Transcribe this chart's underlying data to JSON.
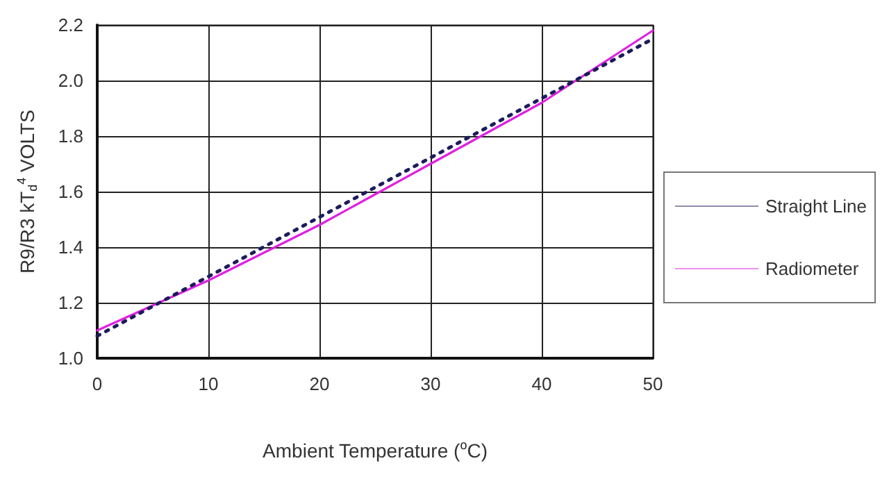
{
  "chart_data": {
    "type": "line",
    "xlabel": "Ambient Temperature ($^{o}$C)",
    "ylabel": "R9/R3 kT$_{d}$$^{4}$ VOLTS",
    "xlim": [
      0,
      50
    ],
    "xticks": [
      0,
      10,
      20,
      30,
      40,
      50
    ],
    "ylim": [
      1.0,
      2.2
    ],
    "yticks": [
      {
        "value": 1.0,
        "label": "1.0"
      },
      {
        "value": 1.2,
        "label": "1.2"
      },
      {
        "value": 1.4,
        "label": "1.4"
      },
      {
        "value": 1.6,
        "label": "1.6"
      },
      {
        "value": 1.8,
        "label": "1.8"
      },
      {
        "value": 2.0,
        "label": "2.0"
      },
      {
        "value": 2.2,
        "label": "2.2"
      }
    ],
    "grid": true,
    "legend": "right",
    "marker": "none",
    "series": [
      {
        "name": "Straight Line",
        "color": "#1c1c5c",
        "line_style": "dotted",
        "x": [
          0,
          50
        ],
        "values": [
          1.08,
          2.15
        ]
      },
      {
        "name": "Radiometer",
        "color": "#e020e0",
        "line_style": "solid",
        "x": [
          0,
          5,
          10,
          15,
          20,
          25,
          30,
          35,
          40,
          45,
          50
        ],
        "values": [
          1.1,
          1.19,
          1.28,
          1.38,
          1.48,
          1.59,
          1.7,
          1.81,
          1.92,
          2.05,
          2.18
        ]
      }
    ]
  }
}
